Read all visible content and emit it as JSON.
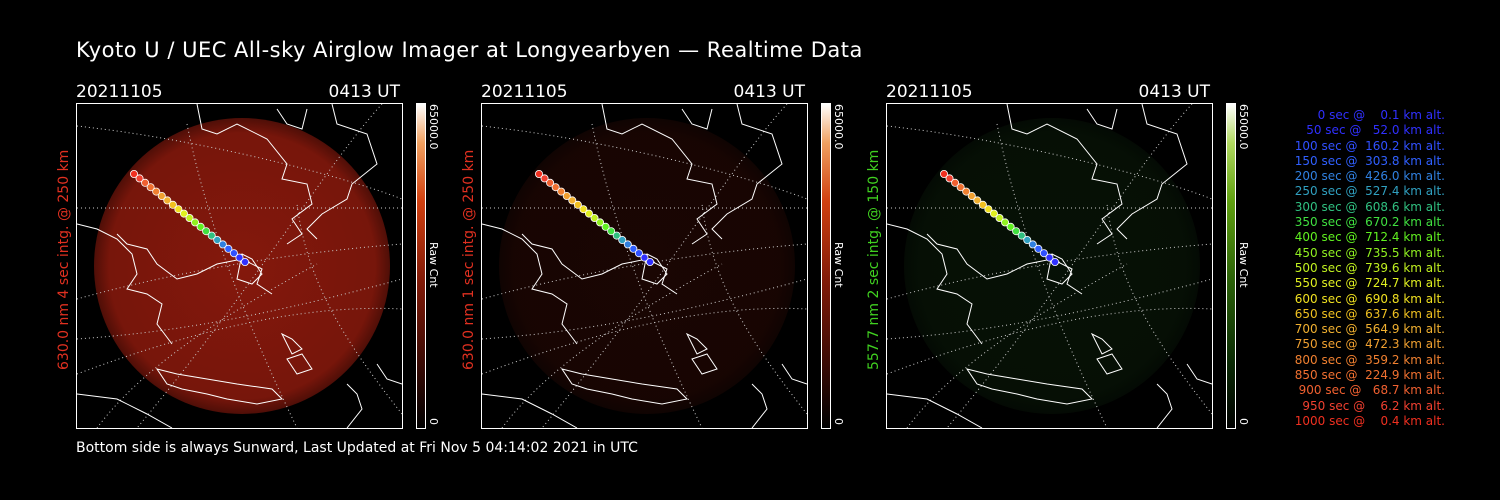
{
  "title": "Kyoto U / UEC All-sky Airglow Imager at Longyearbyen — Realtime Data",
  "footer": "Bottom side is always Sunward, Last Updated at Fri Nov  5 04:14:02 2021 in UTC",
  "panels": [
    {
      "date": "20211105",
      "time": "0413 UT",
      "ylabel": "630.0 nm 4 sec intg. @ 250 km",
      "ylabel_color": "#e03020",
      "tint": "#b02010",
      "intensity": 0.75,
      "cbar_max": "65000.0",
      "cbar_label": "Raw Cnt",
      "cbar_min": "0"
    },
    {
      "date": "20211105",
      "time": "0413 UT",
      "ylabel": "630.0 nm 1 sec intg. @ 250 km",
      "ylabel_color": "#e03020",
      "tint": "#4a1008",
      "intensity": 0.35,
      "cbar_max": "65000.0",
      "cbar_label": "Raw Cnt",
      "cbar_min": "0"
    },
    {
      "date": "20211105",
      "time": "0413 UT",
      "ylabel": "557.7 nm 2 sec intg. @ 150 km",
      "ylabel_color": "#40d020",
      "tint": "#123010",
      "intensity": 0.35,
      "cbar_max": "65000.0",
      "cbar_label": "Raw Cnt",
      "cbar_min": "0"
    }
  ],
  "legend": [
    {
      "text": "   0 sec @    0.1 km alt.",
      "color": "#3030ff"
    },
    {
      "text": "  50 sec @   52.0 km alt.",
      "color": "#3030ff"
    },
    {
      "text": " 100 sec @  160.2 km alt.",
      "color": "#3050ff"
    },
    {
      "text": " 150 sec @  303.8 km alt.",
      "color": "#3060ff"
    },
    {
      "text": " 200 sec @  426.0 km alt.",
      "color": "#3080e0"
    },
    {
      "text": " 250 sec @  527.4 km alt.",
      "color": "#30a0c0"
    },
    {
      "text": " 300 sec @  608.6 km alt.",
      "color": "#30c080"
    },
    {
      "text": " 350 sec @  670.2 km alt.",
      "color": "#40e040"
    },
    {
      "text": " 400 sec @  712.4 km alt.",
      "color": "#60f020"
    },
    {
      "text": " 450 sec @  735.5 km alt.",
      "color": "#90f020"
    },
    {
      "text": " 500 sec @  739.6 km alt.",
      "color": "#c0f020"
    },
    {
      "text": " 550 sec @  724.7 km alt.",
      "color": "#e0f020"
    },
    {
      "text": " 600 sec @  690.8 km alt.",
      "color": "#f0e020"
    },
    {
      "text": " 650 sec @  637.6 km alt.",
      "color": "#f0c020"
    },
    {
      "text": " 700 sec @  564.9 km alt.",
      "color": "#f0b030"
    },
    {
      "text": " 750 sec @  472.3 km alt.",
      "color": "#f0a030"
    },
    {
      "text": " 800 sec @  359.2 km alt.",
      "color": "#f08030"
    },
    {
      "text": " 850 sec @  224.9 km alt.",
      "color": "#f07030"
    },
    {
      "text": " 900 sec @   68.7 km alt.",
      "color": "#f06030"
    },
    {
      "text": " 950 sec @    6.2 km alt.",
      "color": "#f04030"
    },
    {
      "text": "1000 sec @    0.4 km alt.",
      "color": "#f03020"
    }
  ]
}
